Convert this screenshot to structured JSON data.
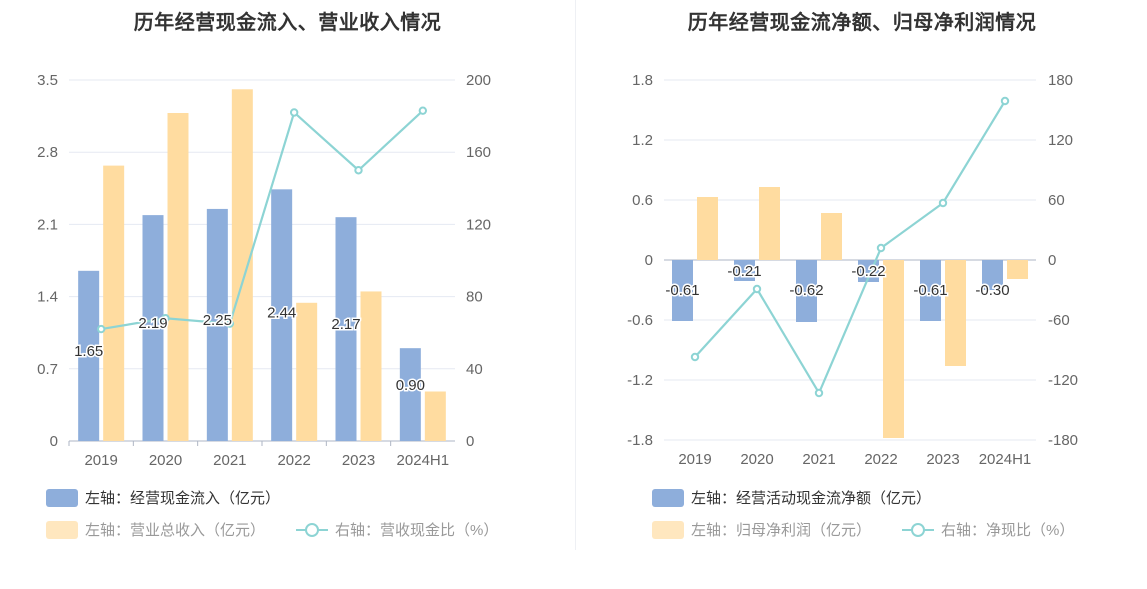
{
  "chart_data": [
    {
      "type": "bar",
      "title": "历年经营现金流入、营业收入情况",
      "categories": [
        "2019",
        "2020",
        "2021",
        "2022",
        "2023",
        "2024H1"
      ],
      "y_left": {
        "ticks": [
          "0",
          "0.7",
          "1.4",
          "2.1",
          "2.8",
          "3.5"
        ],
        "min": 0,
        "max": 3.5
      },
      "y_right": {
        "ticks": [
          "0",
          "40",
          "80",
          "120",
          "160",
          "200"
        ],
        "min": 0,
        "max": 200
      },
      "grid": true,
      "legend_position": "bottom-left",
      "series": [
        {
          "name": "左轴：经营现金流入（亿元）",
          "kind": "bar",
          "axis": "left",
          "color": "#8eaedb",
          "values": [
            1.65,
            2.19,
            2.25,
            2.44,
            2.17,
            0.9
          ],
          "labels": [
            "1.65",
            "2.19",
            "2.25",
            "2.44",
            "2.17",
            "0.90"
          ]
        },
        {
          "name": "左轴：营业总收入（亿元）",
          "kind": "bar",
          "axis": "left",
          "color": "#ffdca0",
          "values": [
            2.67,
            3.18,
            3.41,
            1.34,
            1.45,
            0.48
          ]
        },
        {
          "name": "右轴：营收现金比（%）",
          "kind": "line",
          "axis": "right",
          "color": "#8dd4d4",
          "values": [
            62,
            68,
            65,
            182,
            150,
            183
          ]
        }
      ]
    },
    {
      "type": "bar",
      "title": "历年经营现金流净额、归母净利润情况",
      "categories": [
        "2019",
        "2020",
        "2021",
        "2022",
        "2023",
        "2024H1"
      ],
      "y_left": {
        "ticks": [
          "-1.8",
          "-1.2",
          "-0.6",
          "0",
          "0.6",
          "1.2",
          "1.8"
        ],
        "min": -1.8,
        "max": 1.8
      },
      "y_right": {
        "ticks": [
          "-180",
          "-120",
          "-60",
          "0",
          "60",
          "120",
          "180"
        ],
        "min": -180,
        "max": 180
      },
      "grid": true,
      "legend_position": "bottom-left",
      "series": [
        {
          "name": "左轴：经营活动现金流净额（亿元）",
          "kind": "bar",
          "axis": "left",
          "color": "#8eaedb",
          "values": [
            -0.61,
            -0.21,
            -0.62,
            -0.22,
            -0.61,
            -0.3
          ],
          "labels": [
            "-0.61",
            "-0.21",
            "-0.62",
            "-0.22",
            "-0.61",
            "-0.30"
          ]
        },
        {
          "name": "左轴：归母净利润（亿元）",
          "kind": "bar",
          "axis": "left",
          "color": "#ffdca0",
          "values": [
            0.63,
            0.73,
            0.47,
            -1.78,
            -1.06,
            -0.19
          ]
        },
        {
          "name": "右轴：净现比（%）",
          "kind": "line",
          "axis": "right",
          "color": "#8dd4d4",
          "values": [
            -97,
            -29,
            -133,
            12,
            57,
            159
          ]
        }
      ]
    }
  ]
}
